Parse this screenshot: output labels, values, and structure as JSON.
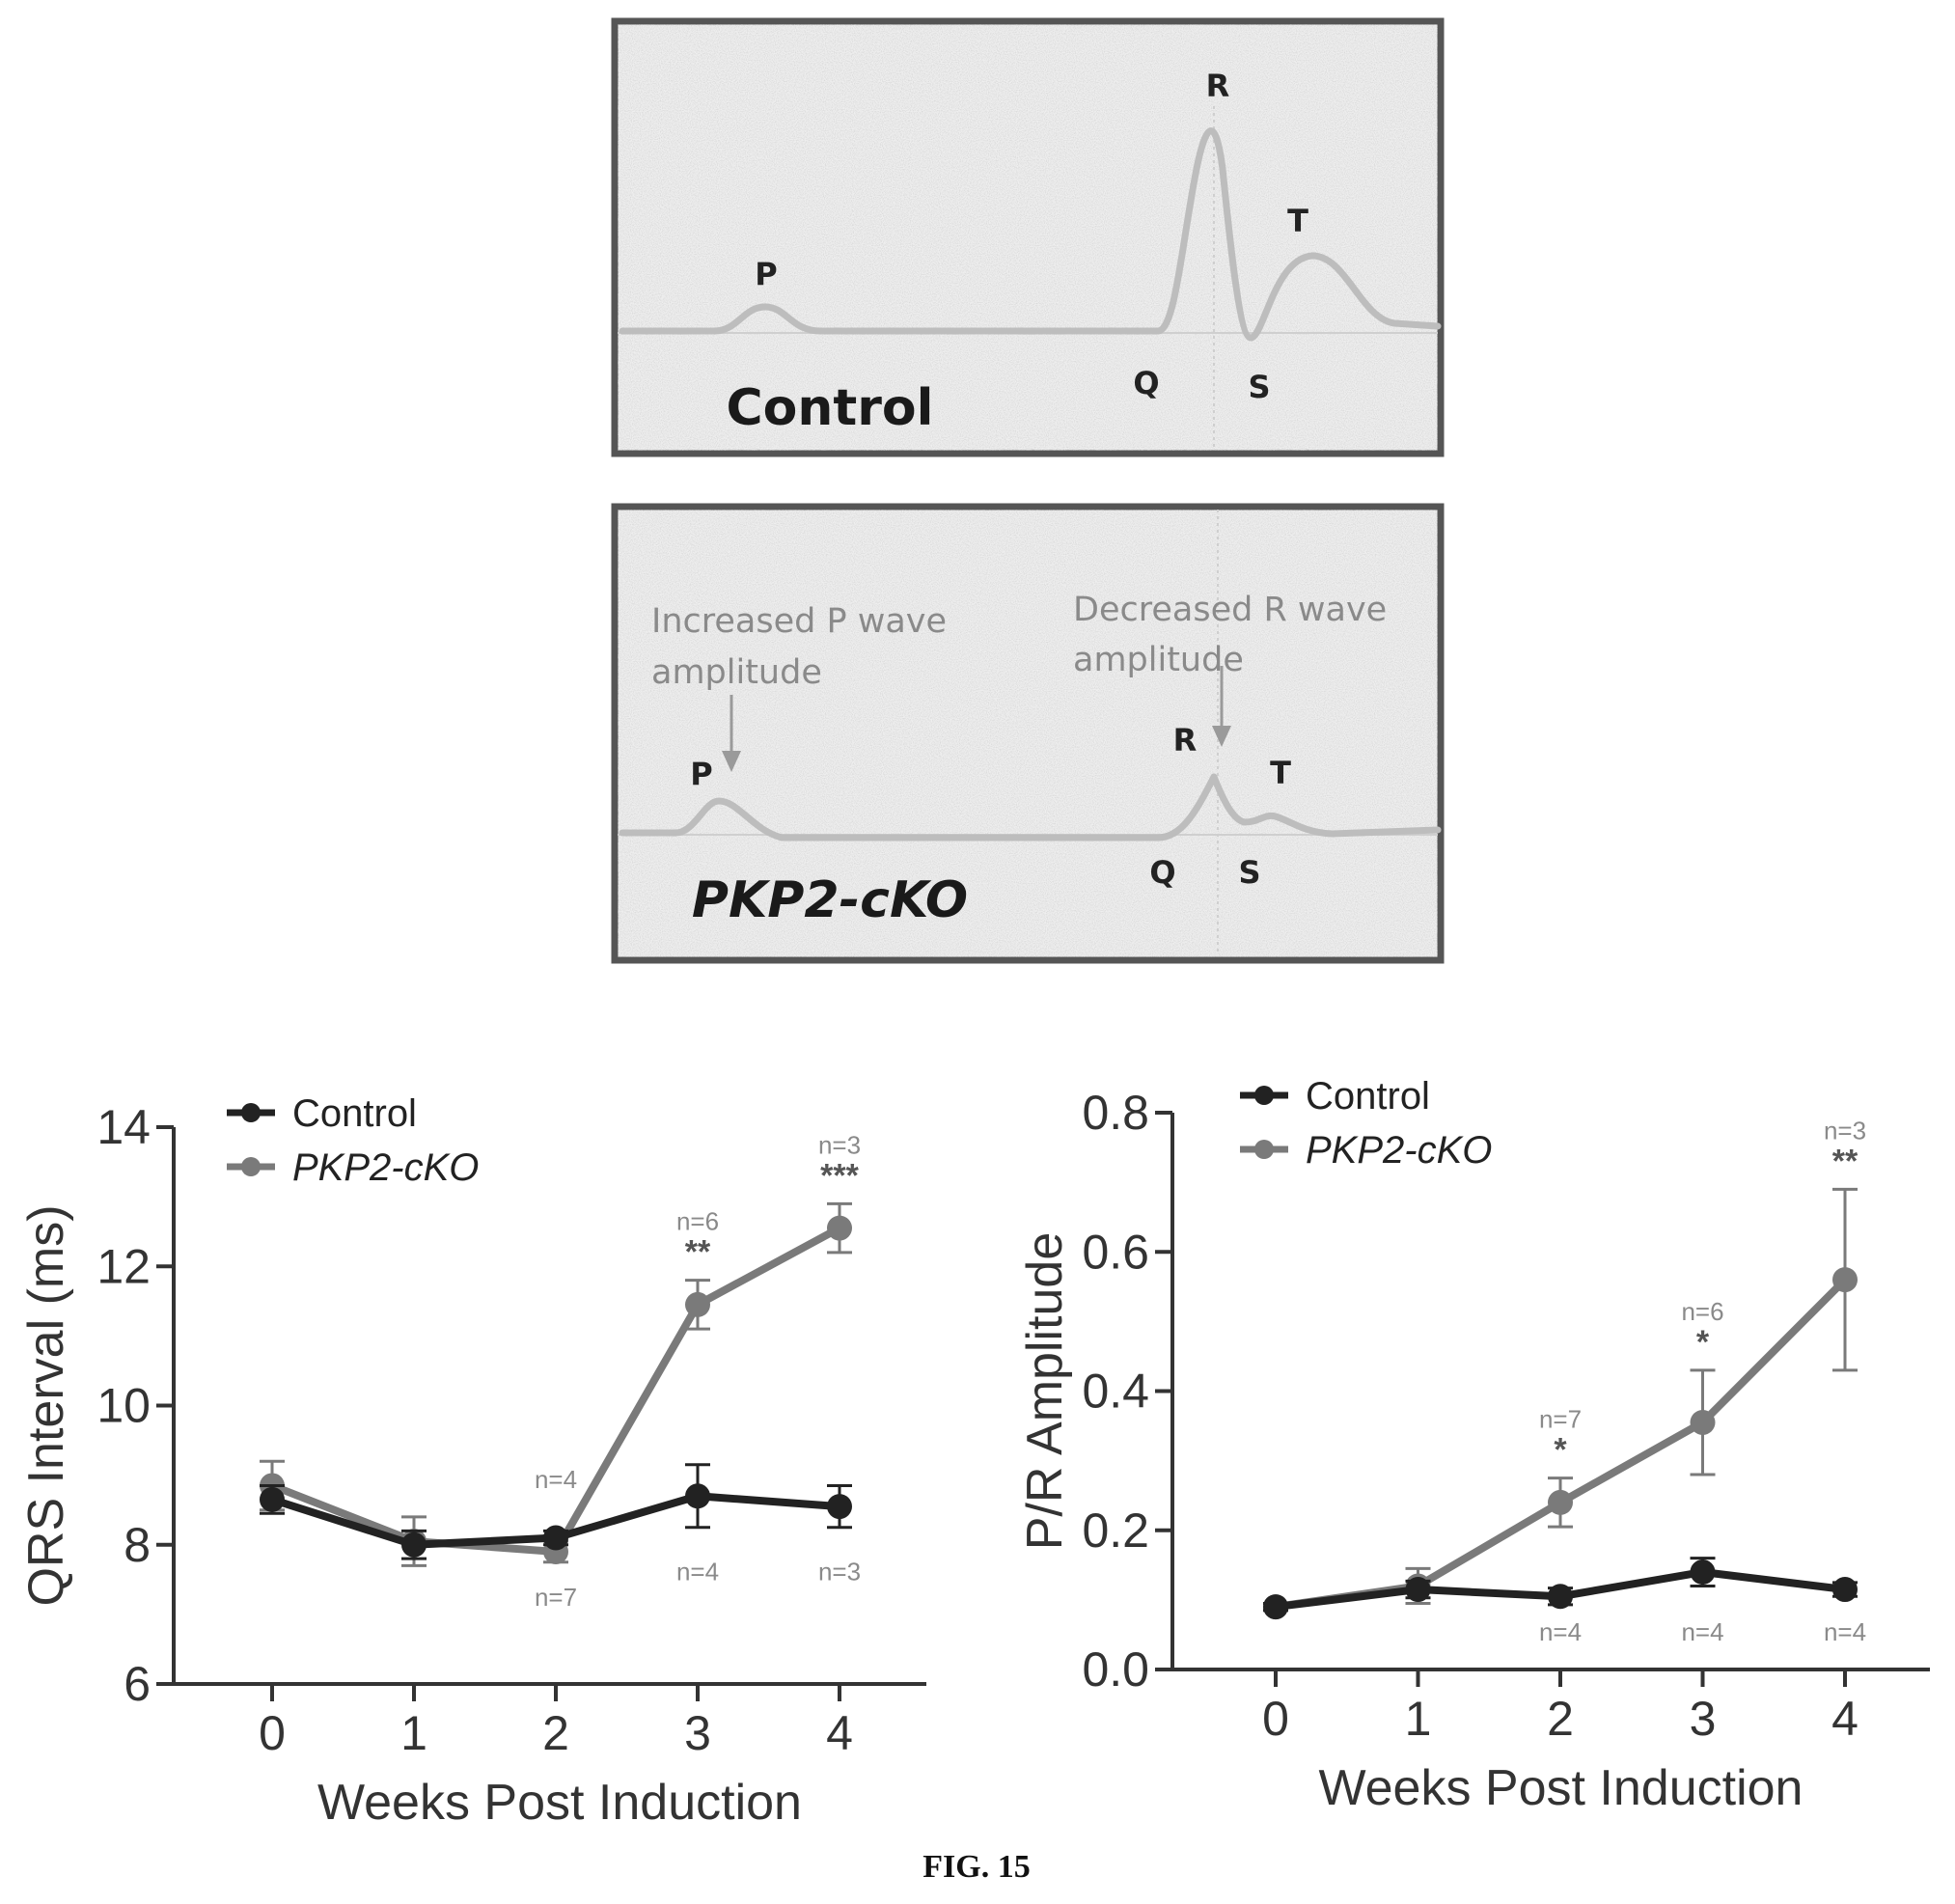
{
  "ecg": {
    "control": {
      "title": "Control",
      "labels": {
        "P": "P",
        "Q": "Q",
        "R": "R",
        "S": "S",
        "T": "T"
      }
    },
    "cko": {
      "title": "PKP2-cKO",
      "labels": {
        "P": "P",
        "Q": "Q",
        "R": "R",
        "S": "S",
        "T": "T"
      },
      "note_p_line1": "Increased P wave",
      "note_p_line2": "amplitude",
      "note_r_line1": "Decreased R wave",
      "note_r_line2": "amplitude"
    }
  },
  "caption": "FIG. 15",
  "chart_data": [
    {
      "type": "line",
      "xlabel": "Weeks Post Induction",
      "ylabel": "QRS Interval (ms)",
      "x": [
        0,
        1,
        2,
        3,
        4
      ],
      "x_ticks": [
        "0",
        "1",
        "2",
        "3",
        "4"
      ],
      "ylim": [
        6,
        14
      ],
      "y_ticks": [
        "6",
        "8",
        "10",
        "12",
        "14"
      ],
      "legend_position": "top-left",
      "series": [
        {
          "name": "Control",
          "color": "#222222",
          "values": [
            8.65,
            8.0,
            8.1,
            8.7,
            8.55
          ],
          "errors": [
            0.2,
            0.2,
            0.1,
            0.45,
            0.3
          ],
          "n_labels": [
            "",
            "",
            "",
            "n=4",
            "n=3"
          ],
          "stars": [
            "",
            "",
            "",
            "",
            ""
          ]
        },
        {
          "name": "PKP2-cKO",
          "color": "#7a7a7a",
          "values": [
            8.85,
            8.05,
            7.9,
            11.45,
            12.55
          ],
          "errors": [
            0.35,
            0.35,
            0.15,
            0.35,
            0.35
          ],
          "n_labels": [
            "",
            "",
            "n=4",
            "n=6",
            "n=3"
          ],
          "stars": [
            "",
            "",
            "",
            "**",
            "***"
          ]
        }
      ],
      "extra_n_labels": [
        {
          "x": 2,
          "text": "n=7"
        }
      ]
    },
    {
      "type": "line",
      "xlabel": "Weeks Post Induction",
      "ylabel": "P/R Amplitude",
      "x": [
        0,
        1,
        2,
        3,
        4
      ],
      "x_ticks": [
        "0",
        "1",
        "2",
        "3",
        "4"
      ],
      "ylim": [
        0.0,
        0.8
      ],
      "y_ticks": [
        "0.0",
        "0.2",
        "0.4",
        "0.6",
        "0.8"
      ],
      "legend_position": "top-left",
      "series": [
        {
          "name": "Control",
          "color": "#222222",
          "values": [
            0.09,
            0.115,
            0.105,
            0.14,
            0.115
          ],
          "errors": [
            0.005,
            0.012,
            0.012,
            0.02,
            0.01
          ],
          "n_labels": [
            "",
            "",
            "n=4",
            "n=4",
            "n=4"
          ],
          "stars": [
            "",
            "",
            "",
            "",
            ""
          ]
        },
        {
          "name": "PKP2-cKO",
          "color": "#7a7a7a",
          "values": [
            0.09,
            0.12,
            0.24,
            0.355,
            0.56
          ],
          "errors": [
            0.005,
            0.025,
            0.035,
            0.075,
            0.13
          ],
          "n_labels": [
            "",
            "",
            "n=7",
            "n=6",
            "n=3"
          ],
          "stars": [
            "",
            "",
            "*",
            "*",
            "**"
          ]
        }
      ]
    }
  ]
}
